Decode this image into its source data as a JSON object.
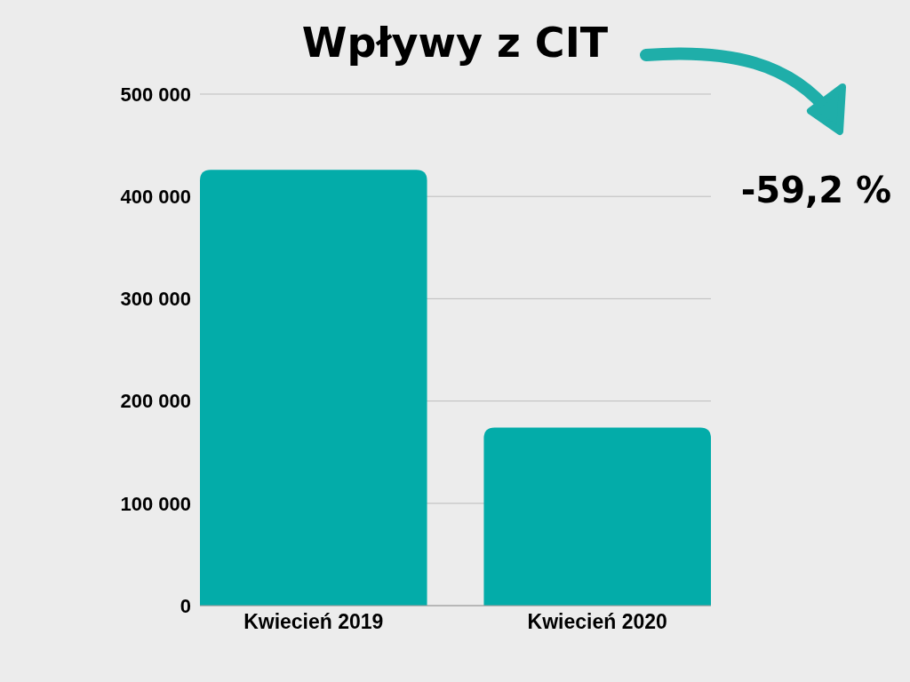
{
  "chart_data": {
    "type": "bar",
    "title": "Wpływy z CIT",
    "categories": [
      "Kwiecień 2019",
      "Kwiecień 2020"
    ],
    "values": [
      426000,
      174000
    ],
    "color": "#03aca9",
    "ylim": [
      0,
      500000
    ],
    "yticks": [
      {
        "value": 0,
        "label": "0"
      },
      {
        "value": 100000,
        "label": "100 000"
      },
      {
        "value": 200000,
        "label": "200 000"
      },
      {
        "value": 300000,
        "label": "300 000"
      },
      {
        "value": 400000,
        "label": "400 000"
      },
      {
        "value": 500000,
        "label": "500 000"
      }
    ],
    "grid": "y",
    "annotations": [
      "-59,2 %"
    ]
  }
}
